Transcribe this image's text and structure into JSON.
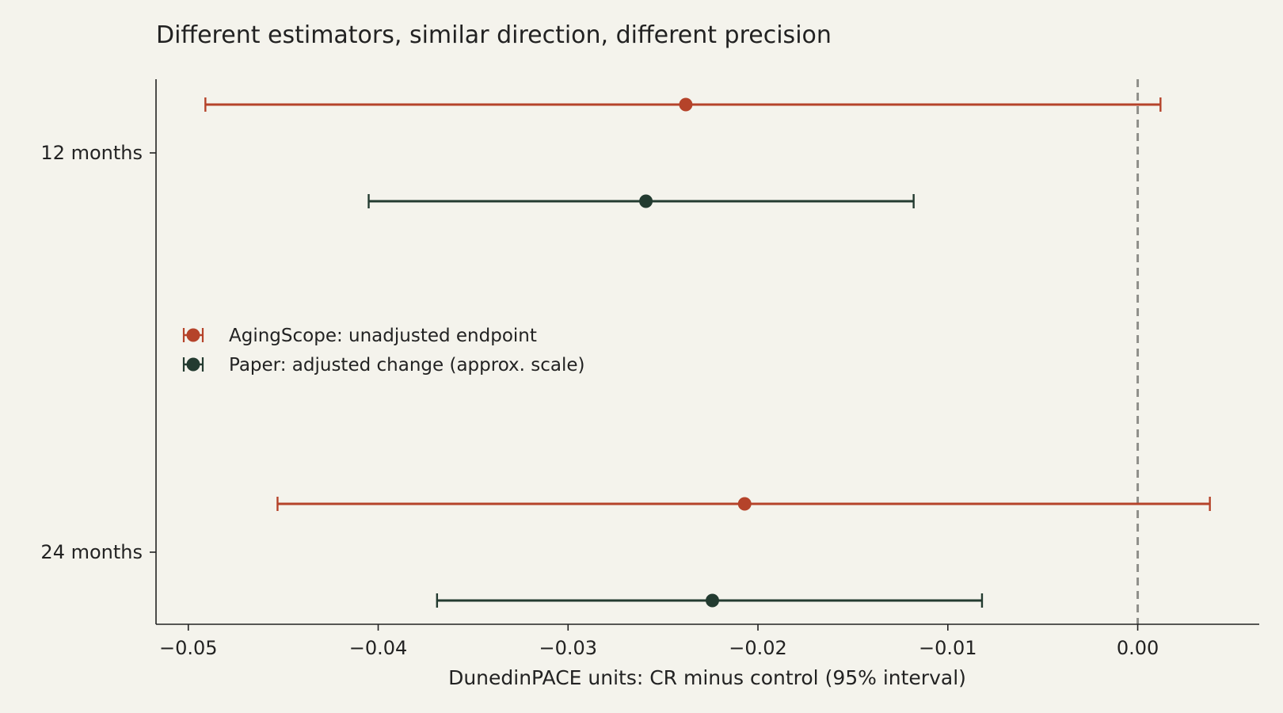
{
  "chart_data": {
    "type": "forest",
    "title": "Different estimators, similar direction, different precision",
    "xlabel": "DunedinPACE units: CR minus control (95% interval)",
    "ylabel": "",
    "xlim": [
      -0.0517,
      0.0064
    ],
    "x_ticks": [
      -0.05,
      -0.04,
      -0.03,
      -0.02,
      -0.01,
      0.0
    ],
    "x_tick_labels": [
      "−0.05",
      "−0.04",
      "−0.03",
      "−0.02",
      "−0.01",
      "0.00"
    ],
    "reference_line": 0.0,
    "grid": false,
    "legend_position": "center-left",
    "categories": [
      "12 months",
      "24 months"
    ],
    "series": [
      {
        "name": "AgingScope: unadjusted endpoint",
        "color": "#b5432a",
        "points": [
          {
            "category": "12 months",
            "estimate": -0.0238,
            "lower": -0.0491,
            "upper": 0.0012
          },
          {
            "category": "24 months",
            "estimate": -0.0207,
            "lower": -0.0453,
            "upper": 0.0038
          }
        ]
      },
      {
        "name": "Paper: adjusted change (approx. scale)",
        "color": "#233b30",
        "points": [
          {
            "category": "12 months",
            "estimate": -0.0259,
            "lower": -0.0405,
            "upper": -0.0118
          },
          {
            "category": "24 months",
            "estimate": -0.0224,
            "lower": -0.0369,
            "upper": -0.0082
          }
        ]
      }
    ]
  }
}
